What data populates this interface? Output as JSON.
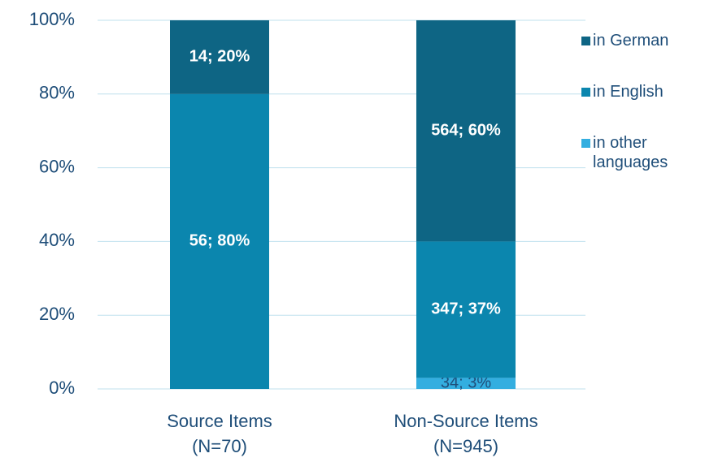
{
  "chart_data": {
    "type": "stacked_bar",
    "categories": [
      [
        "Source Items",
        "(N=70)"
      ],
      [
        "Non-Source Items",
        "(N=945)"
      ]
    ],
    "series": [
      {
        "name": "in other languages",
        "color": "#33aee0",
        "values": [
          null,
          3
        ],
        "value_labels": [
          null,
          "34; 3%"
        ]
      },
      {
        "name": "in English",
        "color": "#0b86ae",
        "values": [
          80,
          37
        ],
        "value_labels": [
          "56; 80%",
          "347; 37%"
        ]
      },
      {
        "name": "in German",
        "color": "#0e6584",
        "values": [
          20,
          60
        ],
        "value_labels": [
          "14; 20%",
          "564; 60%"
        ]
      }
    ],
    "ylim": [
      0,
      100
    ],
    "yticks": [
      {
        "value": 0,
        "label": "0%"
      },
      {
        "value": 20,
        "label": "20%"
      },
      {
        "value": 40,
        "label": "40%"
      },
      {
        "value": 60,
        "label": "60%"
      },
      {
        "value": 80,
        "label": "80%"
      },
      {
        "value": 100,
        "label": "100%"
      }
    ],
    "grid": true,
    "legend": "right"
  }
}
